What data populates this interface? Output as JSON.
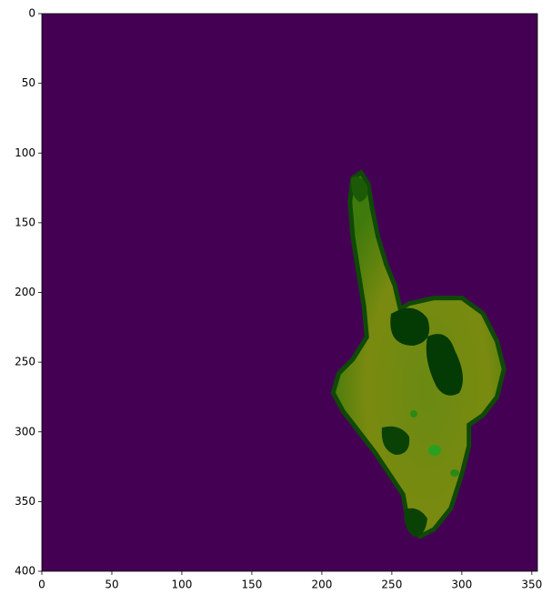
{
  "chart_data": {
    "type": "image",
    "xlim": [
      0,
      354
    ],
    "ylim": [
      400,
      0
    ],
    "xticks": [
      0,
      50,
      100,
      150,
      200,
      250,
      300,
      350
    ],
    "yticks": [
      0,
      50,
      100,
      150,
      200,
      250,
      300,
      350,
      400
    ]
  }
}
